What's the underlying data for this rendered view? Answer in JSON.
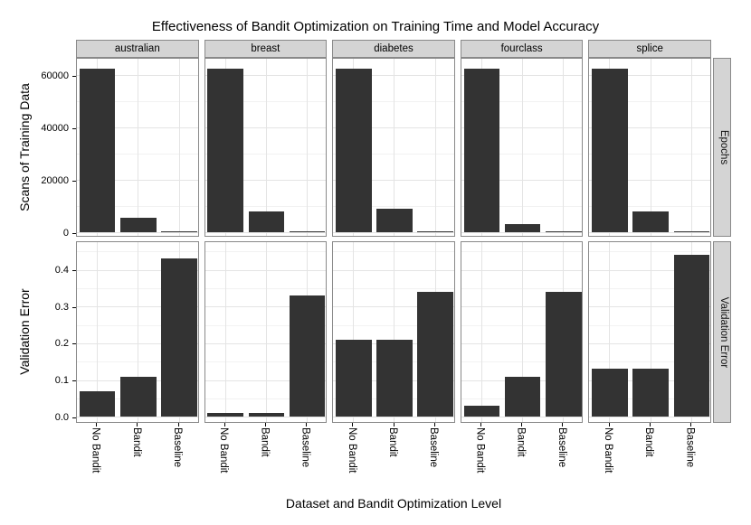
{
  "chart_data": {
    "type": "bar",
    "title": "Effectiveness of Bandit Optimization on Training Time and Model Accuracy",
    "xlabel": "Dataset and Bandit Optimization Level",
    "categories": [
      "No Bandit",
      "Bandit",
      "Baseline"
    ],
    "facet_columns": [
      "australian",
      "breast",
      "diabetes",
      "fourclass",
      "splice"
    ],
    "legend": "none",
    "grid": "on",
    "rows": [
      {
        "strip_label": "Epochs",
        "ylabel": "Scans of Training Data",
        "ylim": [
          0,
          67000
        ],
        "yticks": [
          {
            "label": "0",
            "value": 0
          },
          {
            "label": "20000",
            "value": 20000
          },
          {
            "label": "40000",
            "value": 40000
          },
          {
            "label": "60000",
            "value": 60000
          }
        ],
        "yticks_minor": [
          10000,
          30000,
          50000
        ],
        "series": [
          {
            "facet": "australian",
            "values": [
              62500,
              5500,
              250
            ]
          },
          {
            "facet": "breast",
            "values": [
              62500,
              8000,
              250
            ]
          },
          {
            "facet": "diabetes",
            "values": [
              62500,
              9000,
              250
            ]
          },
          {
            "facet": "fourclass",
            "values": [
              62500,
              3000,
              250
            ]
          },
          {
            "facet": "splice",
            "values": [
              62500,
              8000,
              250
            ]
          }
        ]
      },
      {
        "strip_label": "Validation Error",
        "ylabel": "Validation Error",
        "ylim": [
          0,
          0.48
        ],
        "yticks": [
          {
            "label": "0.0",
            "value": 0.0
          },
          {
            "label": "0.1",
            "value": 0.1
          },
          {
            "label": "0.2",
            "value": 0.2
          },
          {
            "label": "0.3",
            "value": 0.3
          },
          {
            "label": "0.4",
            "value": 0.4
          }
        ],
        "yticks_minor": [
          0.05,
          0.15,
          0.25,
          0.35,
          0.45
        ],
        "series": [
          {
            "facet": "australian",
            "values": [
              0.07,
              0.11,
              0.43
            ]
          },
          {
            "facet": "breast",
            "values": [
              0.01,
              0.01,
              0.33
            ]
          },
          {
            "facet": "diabetes",
            "values": [
              0.21,
              0.21,
              0.34
            ]
          },
          {
            "facet": "fourclass",
            "values": [
              0.03,
              0.11,
              0.34
            ]
          },
          {
            "facet": "splice",
            "values": [
              0.13,
              0.13,
              0.44
            ]
          }
        ]
      }
    ],
    "colors": {
      "bar": "#333333",
      "strip_bg": "#d4d4d4",
      "panel_border": "#898989",
      "grid_major": "#e4e4e4",
      "grid_minor": "#f2f2f2",
      "text": "#000000"
    }
  }
}
